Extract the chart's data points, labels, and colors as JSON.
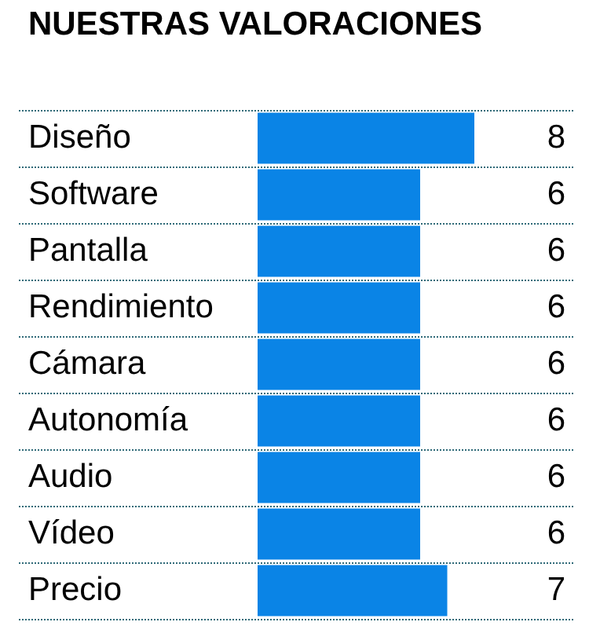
{
  "chart_data": {
    "type": "bar",
    "orientation": "horizontal",
    "title": "NUESTRAS VALORACIONES",
    "categories": [
      "Diseño",
      "Software",
      "Pantalla",
      "Rendimiento",
      "Cámara",
      "Autonomía",
      "Audio",
      "Vídeo",
      "Precio"
    ],
    "values": [
      8,
      6,
      6,
      6,
      6,
      6,
      6,
      6,
      7
    ],
    "color": "#0a84e6",
    "data_labels": true,
    "grid": true,
    "legend": false
  }
}
